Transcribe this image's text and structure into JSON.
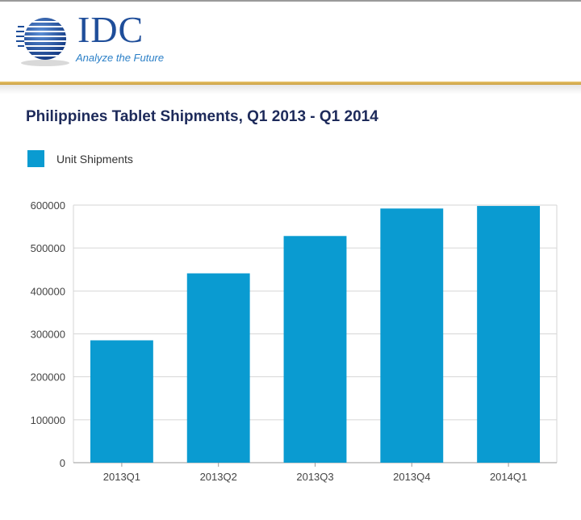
{
  "logo": {
    "wordmark": "IDC",
    "tagline": "Analyze the Future"
  },
  "colors": {
    "bar": "#0a9bd1",
    "title": "#1d2a5a",
    "logo_blue": "#1f4e9a",
    "gold_rule": "#d9b055",
    "grid": "#d6d6d6"
  },
  "chart_data": {
    "type": "bar",
    "title": "Philippines Tablet Shipments, Q1 2013 - Q1 2014",
    "categories": [
      "2013Q1",
      "2013Q2",
      "2013Q3",
      "2013Q4",
      "2014Q1"
    ],
    "series": [
      {
        "name": "Unit Shipments",
        "values": [
          285000,
          441000,
          528000,
          592000,
          598000
        ]
      }
    ],
    "yticks": [
      "0",
      "100000",
      "200000",
      "300000",
      "400000",
      "500000",
      "600000"
    ],
    "ylim": [
      0,
      600000
    ],
    "xlabel": "",
    "ylabel": "",
    "grid": true,
    "legend_position": "top-left"
  }
}
